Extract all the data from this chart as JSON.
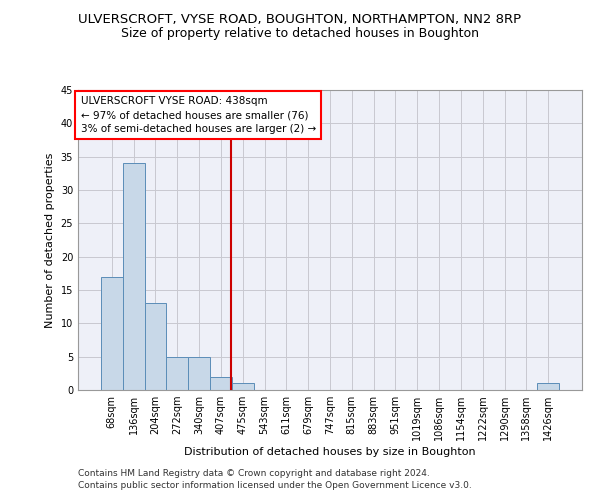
{
  "title": "ULVERSCROFT, VYSE ROAD, BOUGHTON, NORTHAMPTON, NN2 8RP",
  "subtitle": "Size of property relative to detached houses in Boughton",
  "xlabel": "Distribution of detached houses by size in Boughton",
  "ylabel": "Number of detached properties",
  "bar_values": [
    17,
    34,
    13,
    5,
    5,
    2,
    1,
    0,
    0,
    0,
    0,
    0,
    0,
    0,
    0,
    0,
    0,
    0,
    0,
    0,
    1
  ],
  "bar_labels": [
    "68sqm",
    "136sqm",
    "204sqm",
    "272sqm",
    "340sqm",
    "407sqm",
    "475sqm",
    "543sqm",
    "611sqm",
    "679sqm",
    "747sqm",
    "815sqm",
    "883sqm",
    "951sqm",
    "1019sqm",
    "1086sqm",
    "1154sqm",
    "1222sqm",
    "1290sqm",
    "1358sqm",
    "1426sqm"
  ],
  "bar_color": "#c8d8e8",
  "bar_edge_color": "#5b8db8",
  "grid_color": "#c8c8d0",
  "background_color": "#eef0f8",
  "vline_color": "#cc0000",
  "ylim": [
    0,
    45
  ],
  "yticks": [
    0,
    5,
    10,
    15,
    20,
    25,
    30,
    35,
    40,
    45
  ],
  "annotation_title": "ULVERSCROFT VYSE ROAD: 438sqm",
  "annotation_line1": "← 97% of detached houses are smaller (76)",
  "annotation_line2": "3% of semi-detached houses are larger (2) →",
  "footer_line1": "Contains HM Land Registry data © Crown copyright and database right 2024.",
  "footer_line2": "Contains public sector information licensed under the Open Government Licence v3.0.",
  "title_fontsize": 9.5,
  "subtitle_fontsize": 9,
  "axis_label_fontsize": 8,
  "tick_fontsize": 7,
  "annotation_fontsize": 7.5,
  "footer_fontsize": 6.5
}
